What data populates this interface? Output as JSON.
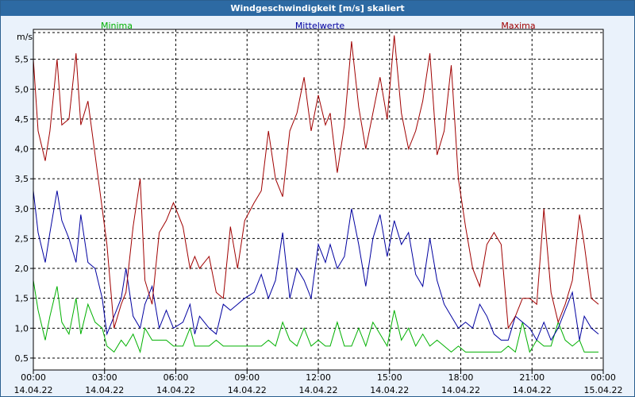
{
  "window": {
    "title": "Windgeschwindigkeit [m/s] skaliert"
  },
  "colors": {
    "min": "#00b000",
    "avg": "#0000a0",
    "max": "#a00000",
    "grid": "#000000",
    "background": "#eaf2fb",
    "titlebar": "#2d6aa3"
  },
  "chart_data": {
    "type": "line",
    "title": "Windgeschwindigkeit [m/s] skaliert",
    "ylabel": "m/s",
    "ylim": [
      0.3,
      6.0
    ],
    "xlim_hours": [
      0,
      24
    ],
    "grid": true,
    "y_ticks": [
      {
        "v": 0.5,
        "label": "0,5"
      },
      {
        "v": 1.0,
        "label": "1,0"
      },
      {
        "v": 1.5,
        "label": "1,5"
      },
      {
        "v": 2.0,
        "label": "2,0"
      },
      {
        "v": 2.5,
        "label": "2,5"
      },
      {
        "v": 3.0,
        "label": "3,0"
      },
      {
        "v": 3.5,
        "label": "3,5"
      },
      {
        "v": 4.0,
        "label": "4,0"
      },
      {
        "v": 4.5,
        "label": "4,5"
      },
      {
        "v": 5.0,
        "label": "5,0"
      },
      {
        "v": 5.5,
        "label": "5,5"
      }
    ],
    "x_ticks": [
      {
        "h": 0,
        "time": "00:00",
        "date": "14.04.22"
      },
      {
        "h": 3,
        "time": "03:00",
        "date": "14.04.22"
      },
      {
        "h": 6,
        "time": "06:00",
        "date": "14.04.22"
      },
      {
        "h": 9,
        "time": "09:00",
        "date": "14.04.22"
      },
      {
        "h": 12,
        "time": "12:00",
        "date": "14.04.22"
      },
      {
        "h": 15,
        "time": "15:00",
        "date": "14.04.22"
      },
      {
        "h": 18,
        "time": "18:00",
        "date": "14.04.22"
      },
      {
        "h": 21,
        "time": "21:00",
        "date": "14.04.22"
      },
      {
        "h": 24,
        "time": "00:00",
        "date": "15.04.22"
      }
    ],
    "series": [
      {
        "name": "Minima",
        "color": "#00b000",
        "x": [
          0.0,
          0.2,
          0.5,
          0.7,
          1.0,
          1.2,
          1.5,
          1.8,
          2.0,
          2.3,
          2.6,
          2.9,
          3.1,
          3.4,
          3.7,
          3.9,
          4.2,
          4.5,
          4.7,
          5.0,
          5.3,
          5.6,
          5.9,
          6.3,
          6.6,
          6.8,
          7.0,
          7.4,
          7.7,
          8.0,
          8.3,
          8.6,
          8.9,
          9.3,
          9.6,
          9.9,
          10.2,
          10.5,
          10.8,
          11.1,
          11.4,
          11.7,
          12.0,
          12.3,
          12.5,
          12.8,
          13.1,
          13.4,
          13.7,
          14.0,
          14.3,
          14.6,
          14.9,
          15.2,
          15.5,
          15.8,
          16.1,
          16.4,
          16.7,
          17.0,
          17.3,
          17.6,
          17.9,
          18.2,
          18.5,
          18.8,
          19.1,
          19.4,
          19.7,
          20.0,
          20.3,
          20.6,
          20.9,
          21.2,
          21.5,
          21.8,
          22.1,
          22.4,
          22.7,
          23.0,
          23.2,
          23.5,
          23.8
        ],
        "y": [
          1.8,
          1.3,
          0.8,
          1.2,
          1.7,
          1.1,
          0.9,
          1.5,
          0.9,
          1.4,
          1.1,
          1.0,
          0.7,
          0.6,
          0.8,
          0.7,
          0.9,
          0.6,
          1.0,
          0.8,
          0.8,
          0.8,
          0.7,
          0.7,
          1.0,
          0.7,
          0.7,
          0.7,
          0.8,
          0.7,
          0.7,
          0.7,
          0.7,
          0.7,
          0.7,
          0.8,
          0.7,
          1.1,
          0.8,
          0.7,
          1.0,
          0.7,
          0.8,
          0.7,
          0.7,
          1.1,
          0.7,
          0.7,
          1.0,
          0.7,
          1.1,
          0.9,
          0.7,
          1.3,
          0.8,
          1.0,
          0.7,
          0.9,
          0.7,
          0.8,
          0.7,
          0.6,
          0.7,
          0.6,
          0.6,
          0.6,
          0.6,
          0.6,
          0.6,
          0.7,
          0.6,
          1.1,
          0.6,
          0.8,
          0.7,
          0.7,
          1.1,
          0.8,
          0.7,
          0.8,
          0.6,
          0.6,
          0.6
        ]
      },
      {
        "name": "Mittelwerte",
        "color": "#0000a0",
        "x": [
          0.0,
          0.2,
          0.5,
          0.7,
          1.0,
          1.2,
          1.5,
          1.8,
          2.0,
          2.3,
          2.6,
          2.9,
          3.1,
          3.4,
          3.7,
          3.9,
          4.2,
          4.5,
          4.7,
          5.0,
          5.3,
          5.6,
          5.9,
          6.3,
          6.6,
          6.8,
          7.0,
          7.4,
          7.7,
          8.0,
          8.3,
          8.6,
          8.9,
          9.3,
          9.6,
          9.9,
          10.2,
          10.5,
          10.8,
          11.1,
          11.4,
          11.7,
          12.0,
          12.3,
          12.5,
          12.8,
          13.1,
          13.4,
          13.7,
          14.0,
          14.3,
          14.6,
          14.9,
          15.2,
          15.5,
          15.8,
          16.1,
          16.4,
          16.7,
          17.0,
          17.3,
          17.6,
          17.9,
          18.2,
          18.5,
          18.8,
          19.1,
          19.4,
          19.7,
          20.0,
          20.3,
          20.6,
          20.9,
          21.2,
          21.5,
          21.8,
          22.1,
          22.4,
          22.7,
          23.0,
          23.2,
          23.5,
          23.8
        ],
        "y": [
          3.3,
          2.6,
          2.1,
          2.6,
          3.3,
          2.8,
          2.5,
          2.1,
          2.9,
          2.1,
          2.0,
          1.5,
          0.9,
          1.2,
          1.5,
          2.0,
          1.2,
          1.0,
          1.4,
          1.7,
          1.0,
          1.3,
          1.0,
          1.1,
          1.4,
          0.9,
          1.2,
          1.0,
          0.9,
          1.4,
          1.3,
          1.4,
          1.5,
          1.6,
          1.9,
          1.5,
          1.8,
          2.6,
          1.5,
          2.0,
          1.8,
          1.5,
          2.4,
          2.1,
          2.4,
          2.0,
          2.2,
          3.0,
          2.4,
          1.7,
          2.5,
          2.9,
          2.2,
          2.8,
          2.4,
          2.6,
          1.9,
          1.7,
          2.5,
          1.8,
          1.4,
          1.2,
          1.0,
          1.1,
          1.0,
          1.4,
          1.2,
          0.9,
          0.8,
          0.8,
          1.2,
          1.1,
          1.0,
          0.8,
          1.1,
          0.8,
          1.0,
          1.3,
          1.6,
          0.8,
          1.2,
          1.0,
          0.9
        ]
      },
      {
        "name": "Maxima",
        "color": "#a00000",
        "x": [
          0.0,
          0.2,
          0.5,
          0.7,
          1.0,
          1.2,
          1.5,
          1.8,
          2.0,
          2.3,
          2.6,
          2.9,
          3.1,
          3.4,
          3.7,
          3.9,
          4.2,
          4.5,
          4.7,
          5.0,
          5.3,
          5.6,
          5.9,
          6.3,
          6.6,
          6.8,
          7.0,
          7.4,
          7.7,
          8.0,
          8.3,
          8.6,
          8.9,
          9.3,
          9.6,
          9.9,
          10.2,
          10.5,
          10.8,
          11.1,
          11.4,
          11.7,
          12.0,
          12.3,
          12.5,
          12.8,
          13.1,
          13.4,
          13.7,
          14.0,
          14.3,
          14.6,
          14.9,
          15.2,
          15.5,
          15.8,
          16.1,
          16.4,
          16.7,
          17.0,
          17.3,
          17.6,
          17.9,
          18.2,
          18.5,
          18.8,
          19.1,
          19.4,
          19.7,
          20.0,
          20.3,
          20.6,
          20.9,
          21.2,
          21.5,
          21.8,
          22.1,
          22.4,
          22.7,
          23.0,
          23.2,
          23.5,
          23.8
        ],
        "y": [
          5.5,
          4.3,
          3.8,
          4.3,
          5.5,
          4.4,
          4.5,
          5.6,
          4.4,
          4.8,
          3.9,
          3.0,
          2.4,
          1.0,
          1.4,
          1.6,
          2.7,
          3.5,
          1.8,
          1.4,
          2.6,
          2.8,
          3.1,
          2.7,
          2.0,
          2.2,
          2.0,
          2.2,
          1.6,
          1.5,
          2.7,
          2.0,
          2.8,
          3.1,
          3.3,
          4.3,
          3.5,
          3.2,
          4.3,
          4.6,
          5.2,
          4.3,
          4.9,
          4.4,
          4.6,
          3.6,
          4.4,
          5.8,
          4.7,
          4.0,
          4.6,
          5.2,
          4.5,
          5.9,
          4.6,
          4.0,
          4.3,
          4.8,
          5.6,
          3.9,
          4.3,
          5.4,
          3.5,
          2.7,
          2.0,
          1.7,
          2.4,
          2.6,
          2.4,
          1.0,
          1.2,
          1.5,
          1.5,
          1.4,
          3.0,
          1.6,
          1.1,
          1.4,
          1.8,
          2.9,
          2.4,
          1.5,
          1.4
        ]
      }
    ]
  }
}
